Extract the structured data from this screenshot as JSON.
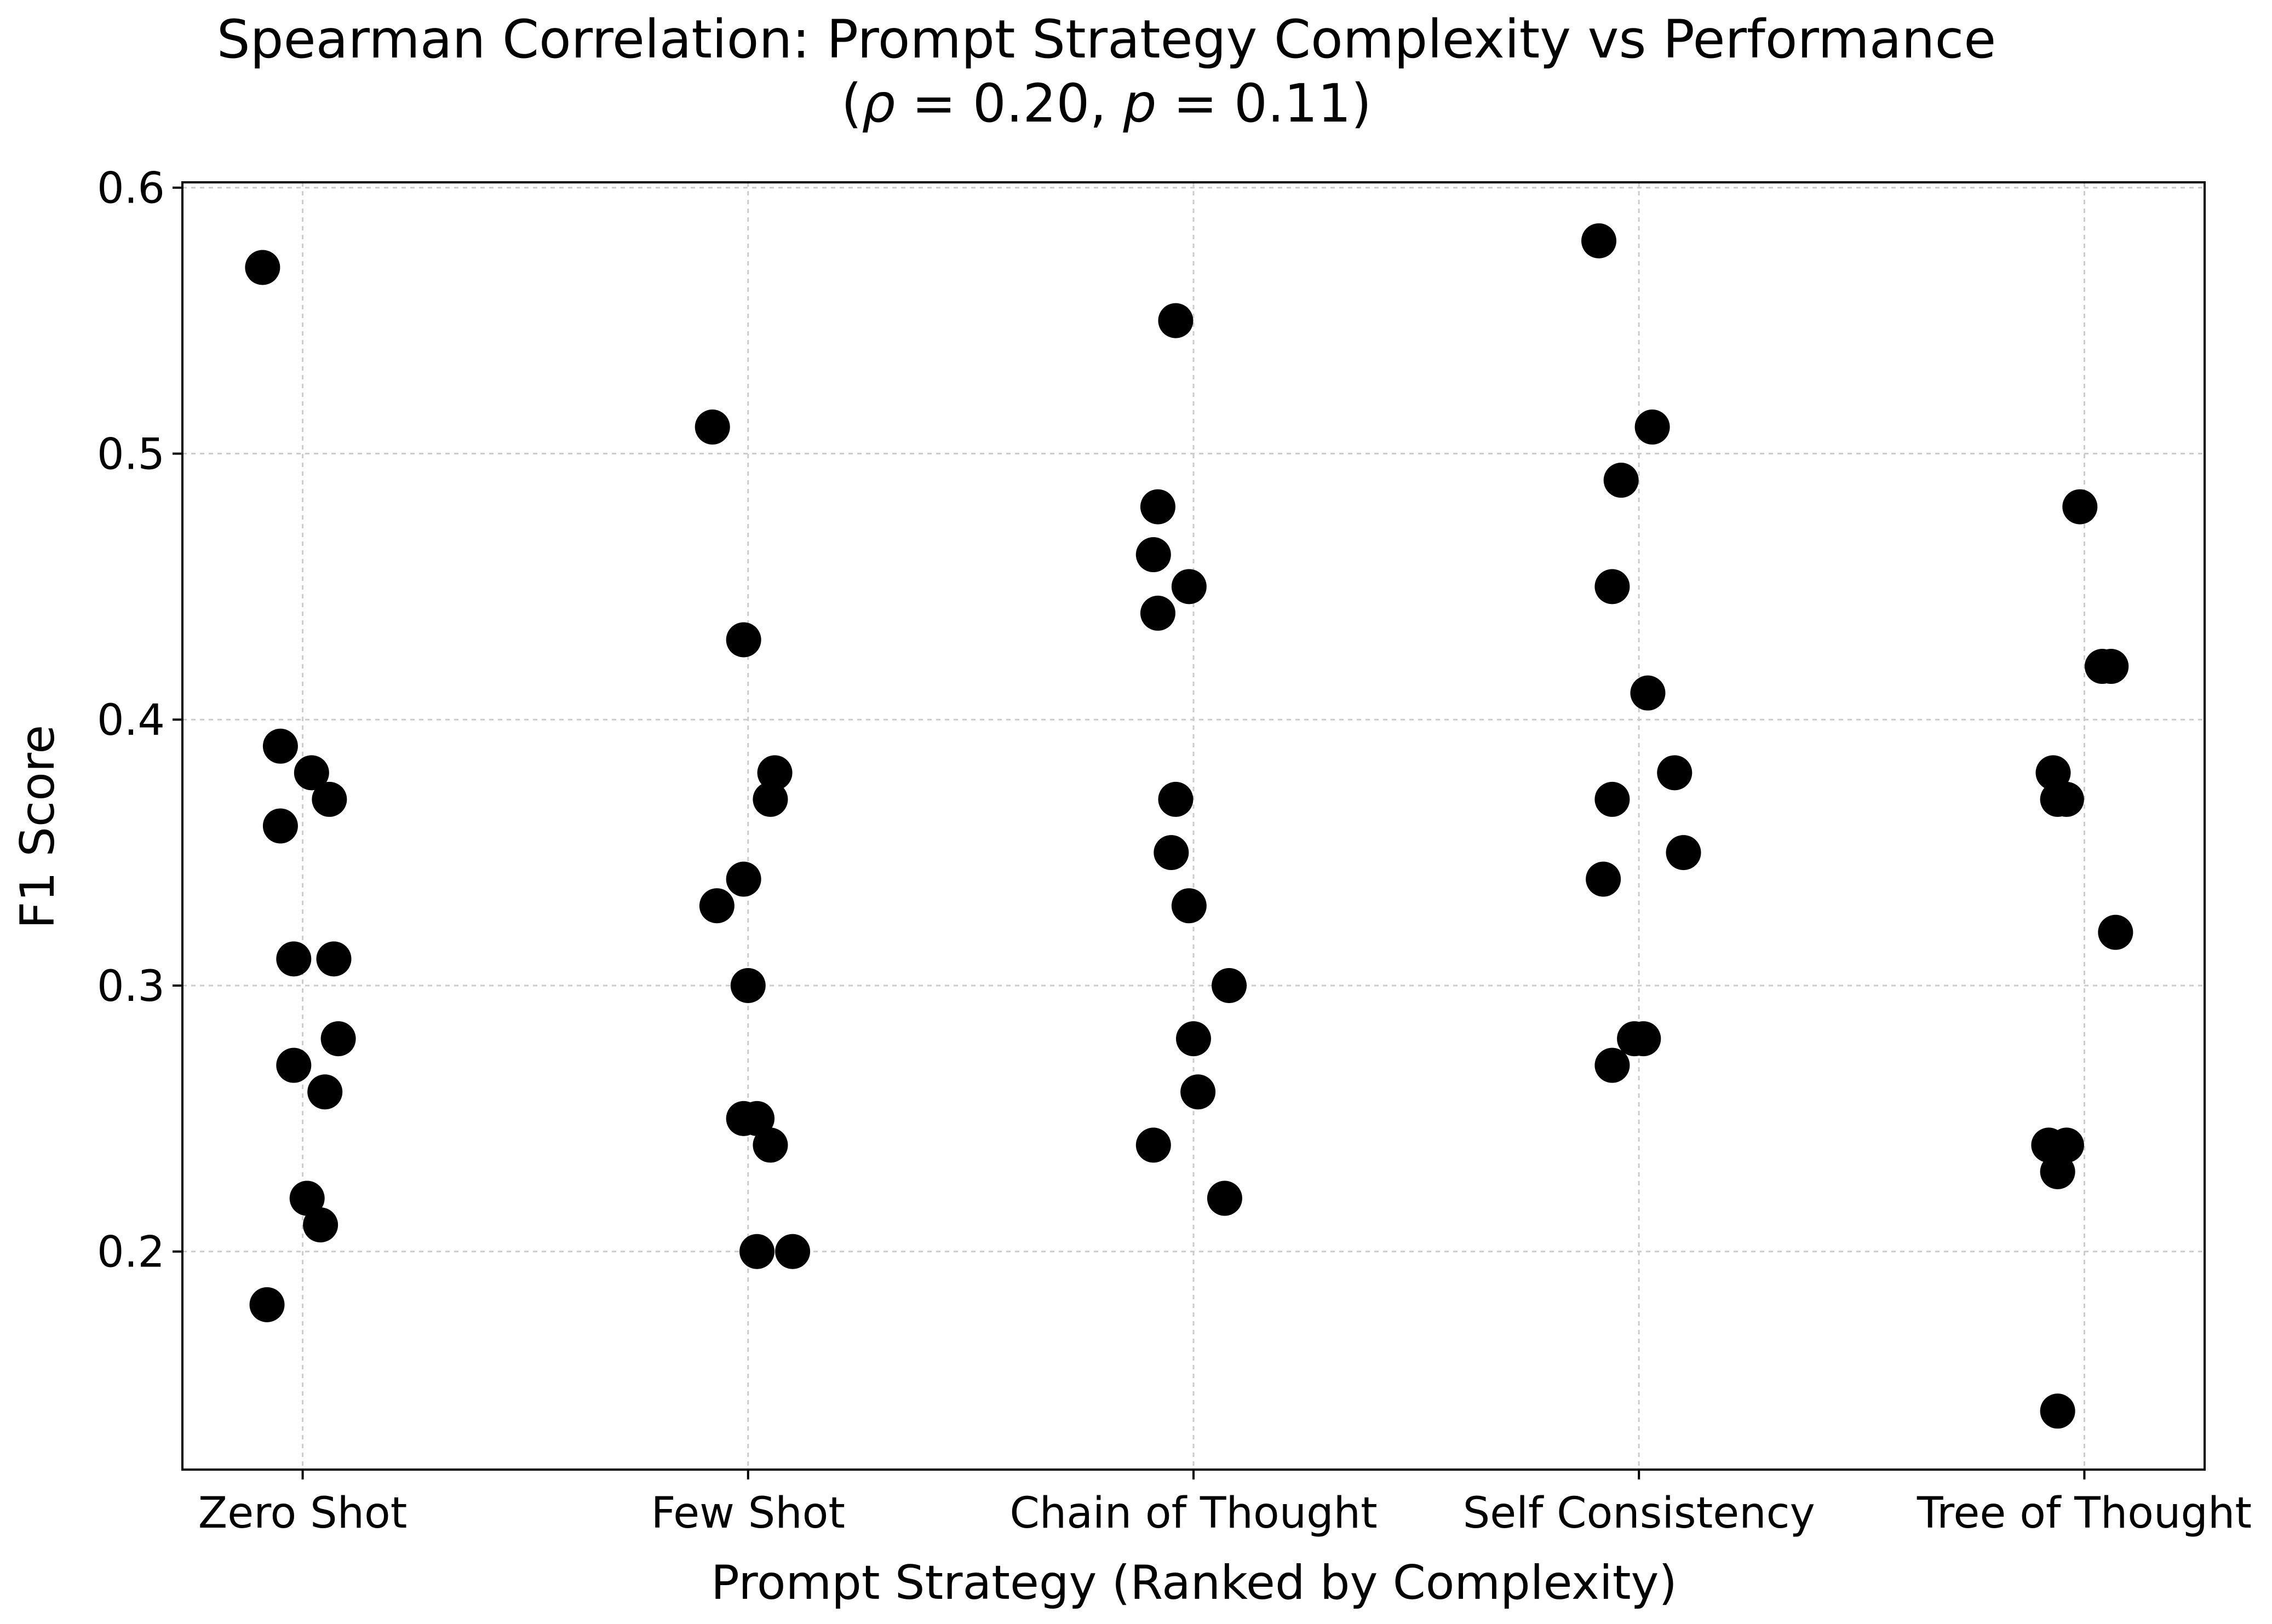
{
  "chart_data": {
    "type": "scatter",
    "title_line1": "Spearman Correlation: Prompt Strategy Complexity vs Performance",
    "title_line2": {
      "open": "(",
      "rho_symbol": "ρ",
      "rho_text": " = 0.20, ",
      "p_symbol": "p",
      "p_text": " = 0.11)"
    },
    "xlabel": "Prompt Strategy (Ranked by Complexity)",
    "ylabel": "F1 Score",
    "categories": [
      "Zero Shot",
      "Few Shot",
      "Chain of Thought",
      "Self Consistency",
      "Tree of Thought"
    ],
    "y_ticks": [
      "0.2",
      "0.3",
      "0.4",
      "0.5",
      "0.6"
    ],
    "y_tick_values": [
      0.2,
      0.3,
      0.4,
      0.5,
      0.6
    ],
    "ylim": [
      0.118,
      0.602
    ],
    "xlim": [
      -0.27,
      4.27
    ],
    "grid": true,
    "marker_color": "#000000",
    "series": [
      {
        "name": "Zero Shot",
        "points": [
          {
            "x": -0.09,
            "y": 0.57
          },
          {
            "x": -0.05,
            "y": 0.39
          },
          {
            "x": 0.02,
            "y": 0.38
          },
          {
            "x": 0.06,
            "y": 0.37
          },
          {
            "x": -0.05,
            "y": 0.36
          },
          {
            "x": -0.02,
            "y": 0.31
          },
          {
            "x": 0.07,
            "y": 0.31
          },
          {
            "x": 0.08,
            "y": 0.28
          },
          {
            "x": -0.02,
            "y": 0.27
          },
          {
            "x": 0.05,
            "y": 0.26
          },
          {
            "x": 0.01,
            "y": 0.22
          },
          {
            "x": 0.04,
            "y": 0.21
          },
          {
            "x": -0.08,
            "y": 0.18
          }
        ]
      },
      {
        "name": "Few Shot",
        "points": [
          {
            "x": 0.92,
            "y": 0.51
          },
          {
            "x": 0.99,
            "y": 0.43
          },
          {
            "x": 1.06,
            "y": 0.38
          },
          {
            "x": 1.05,
            "y": 0.37
          },
          {
            "x": 0.99,
            "y": 0.34
          },
          {
            "x": 0.93,
            "y": 0.33
          },
          {
            "x": 1.0,
            "y": 0.3
          },
          {
            "x": 0.99,
            "y": 0.25
          },
          {
            "x": 1.02,
            "y": 0.25
          },
          {
            "x": 1.05,
            "y": 0.24
          },
          {
            "x": 1.02,
            "y": 0.2
          },
          {
            "x": 1.1,
            "y": 0.2
          }
        ]
      },
      {
        "name": "Chain of Thought",
        "points": [
          {
            "x": 1.96,
            "y": 0.55
          },
          {
            "x": 1.92,
            "y": 0.48
          },
          {
            "x": 1.91,
            "y": 0.462
          },
          {
            "x": 1.99,
            "y": 0.45
          },
          {
            "x": 1.92,
            "y": 0.44
          },
          {
            "x": 1.96,
            "y": 0.37
          },
          {
            "x": 1.95,
            "y": 0.35
          },
          {
            "x": 1.99,
            "y": 0.33
          },
          {
            "x": 2.08,
            "y": 0.3
          },
          {
            "x": 2.0,
            "y": 0.28
          },
          {
            "x": 2.01,
            "y": 0.26
          },
          {
            "x": 1.91,
            "y": 0.24
          },
          {
            "x": 2.07,
            "y": 0.22
          }
        ]
      },
      {
        "name": "Self Consistency",
        "points": [
          {
            "x": 2.91,
            "y": 0.58
          },
          {
            "x": 3.03,
            "y": 0.51
          },
          {
            "x": 2.96,
            "y": 0.49
          },
          {
            "x": 2.94,
            "y": 0.45
          },
          {
            "x": 3.02,
            "y": 0.41
          },
          {
            "x": 3.08,
            "y": 0.38
          },
          {
            "x": 2.94,
            "y": 0.37
          },
          {
            "x": 3.1,
            "y": 0.35
          },
          {
            "x": 2.92,
            "y": 0.34
          },
          {
            "x": 2.99,
            "y": 0.28
          },
          {
            "x": 3.01,
            "y": 0.28
          },
          {
            "x": 2.94,
            "y": 0.27
          }
        ]
      },
      {
        "name": "Tree of Thought",
        "points": [
          {
            "x": 3.99,
            "y": 0.48
          },
          {
            "x": 4.04,
            "y": 0.42
          },
          {
            "x": 4.06,
            "y": 0.42
          },
          {
            "x": 3.93,
            "y": 0.38
          },
          {
            "x": 3.94,
            "y": 0.37
          },
          {
            "x": 3.96,
            "y": 0.37
          },
          {
            "x": 4.07,
            "y": 0.32
          },
          {
            "x": 3.92,
            "y": 0.24
          },
          {
            "x": 3.96,
            "y": 0.24
          },
          {
            "x": 3.94,
            "y": 0.23
          },
          {
            "x": 3.94,
            "y": 0.14
          }
        ]
      }
    ]
  }
}
